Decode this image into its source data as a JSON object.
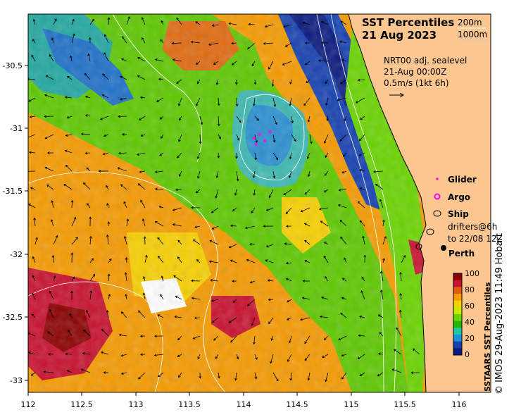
{
  "title_line1": "SST Percentiles",
  "title_line2": "21 Aug 2023",
  "contour_legend": [
    "200m",
    "1000m"
  ],
  "current_source": "NRT00 adj. sealevel",
  "current_time": "21-Aug 00:00Z",
  "current_scale": "0.5m/s (1kt 6h)",
  "legend": {
    "glider": "Glider",
    "argo": "Argo",
    "ship": "Ship",
    "drifters_line1": "drifters@6h",
    "drifters_line2": "to 22/08 12Z",
    "perth": "Perth"
  },
  "colorbar": {
    "title": "SSTAARS SST Percentiles",
    "ticks": [
      "100",
      "80",
      "60",
      "40",
      "20",
      "0"
    ],
    "colors": [
      "#8b0000",
      "#c8102e",
      "#e05a10",
      "#f59a00",
      "#f7d000",
      "#c8e800",
      "#6ad400",
      "#22b800",
      "#1fc8a0",
      "#1e90d8",
      "#1540b0",
      "#0a1a80"
    ]
  },
  "credit": "© IMOS 29-Aug-2023 11:49 Hobart",
  "axes": {
    "x_ticks": [
      "112",
      "112.5",
      "113",
      "113.5",
      "114",
      "114.5",
      "115",
      "115.5",
      "116"
    ],
    "y_ticks": [
      "-30.5",
      "-31",
      "-31.5",
      "-32",
      "-32.5",
      "-33"
    ],
    "xlim": [
      112,
      116.3
    ],
    "ylim": [
      -33.1,
      -30.05
    ]
  },
  "map_data": {
    "lon_range": [
      112,
      116.3
    ],
    "lat_range": [
      -33.1,
      -30.05
    ],
    "glider_points": [
      [
        114.1,
        -31.05
      ],
      [
        114.15,
        -31.02
      ],
      [
        114.2,
        -31.07
      ],
      [
        114.12,
        -31.1
      ],
      [
        114.25,
        -31.0
      ]
    ],
    "ship_points": [
      [
        115.7,
        -31.82
      ],
      [
        115.6,
        -31.98
      ]
    ],
    "perth": [
      115.86,
      -31.95
    ]
  },
  "colors": {
    "land": "#fbc690",
    "ocean_mid": "#f59a00",
    "contour": "#ffffff",
    "glider": "#e020e0",
    "argo": "#ff00ff"
  }
}
